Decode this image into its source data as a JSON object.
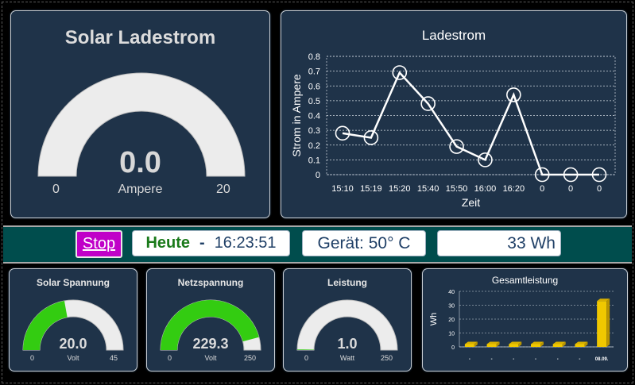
{
  "main_gauge": {
    "title": "Solar Ladestrom",
    "value": "0.0",
    "unit": "Ampere",
    "min": "0",
    "max": "20",
    "fraction": 0.0
  },
  "line_chart_panel": {
    "title": "Ladestrom"
  },
  "chart_data": [
    {
      "type": "line",
      "title": "Ladestrom",
      "xlabel": "Zeit",
      "ylabel": "Strom in Ampere",
      "categories": [
        "15:10",
        "15:19",
        "15:20",
        "15:40",
        "15:50",
        "16:00",
        "16:20",
        "0",
        "0",
        "0"
      ],
      "values": [
        0.28,
        0.25,
        0.69,
        0.48,
        0.19,
        0.1,
        0.54,
        0,
        0,
        0
      ],
      "ylim": [
        0,
        0.8
      ],
      "yticks": [
        "0",
        "0.1",
        "0.2",
        "0.3",
        "0.4",
        "0.5",
        "0.6",
        "0.7",
        "0.8"
      ],
      "grid": true
    },
    {
      "type": "bar",
      "title": "Gesamtleistung",
      "xlabel": "",
      "ylabel": "Wh",
      "categories": [
        "-",
        "-",
        "-",
        "-",
        "-",
        "-",
        "08.09."
      ],
      "values": [
        2,
        2,
        2,
        2,
        2,
        2,
        33
      ],
      "ylim": [
        0,
        40
      ],
      "yticks": [
        "0",
        "10",
        "20",
        "30",
        "40"
      ],
      "grid": true
    }
  ],
  "status_bar": {
    "stop_label": "Stop",
    "day_label": "Heute",
    "separator": "-",
    "time": "16:23:51",
    "device_temp": "Gerät: 50° C",
    "energy": "33 Wh"
  },
  "small_gauges": [
    {
      "title": "Solar Spannung",
      "value": "20.0",
      "unit": "Volt",
      "min": "0",
      "max": "45",
      "fraction": 0.444,
      "color": "#33cc11"
    },
    {
      "title": "Netzspannung",
      "value": "229.3",
      "unit": "Volt",
      "min": "0",
      "max": "250",
      "fraction": 0.917,
      "color": "#33cc11"
    },
    {
      "title": "Leistung",
      "value": "1.0",
      "unit": "Watt",
      "min": "0",
      "max": "250",
      "fraction": 0.004,
      "color": "#33cc11"
    }
  ],
  "colors": {
    "panel": "#1f3349",
    "gauge_track": "#ececec",
    "gauge_fill": "#33cc11",
    "band": "#004d4d",
    "stop_button": "#c000c8",
    "bar": "#f0c800"
  }
}
